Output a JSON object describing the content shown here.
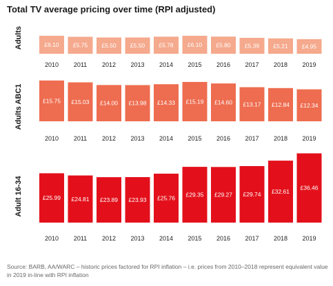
{
  "title": "Total TV average pricing over time (RPI adjusted)",
  "source": "Source: BARB, AA/WARC – historic prices factored for RPI inflation – i.e. prices from 2010–2018 represent equivalent value in 2019 in-line with RPI inflation",
  "chart_data": [
    {
      "type": "bar",
      "panel_label": "Adults",
      "color": "#f5a98d",
      "categories": [
        "2010",
        "2011",
        "2012",
        "2013",
        "2014",
        "2015",
        "2016",
        "2017",
        "2018",
        "2019"
      ],
      "values": [
        6.1,
        5.75,
        5.5,
        5.5,
        5.78,
        6.1,
        5.8,
        5.39,
        5.21,
        4.95
      ],
      "value_labels": [
        "£6.10",
        "£5.75",
        "£5.50",
        "£5.50",
        "£5.78",
        "£6.10",
        "£5.80",
        "£5.39",
        "£5.21",
        "£4.95"
      ],
      "ylim": [
        0,
        7
      ]
    },
    {
      "type": "bar",
      "panel_label": "Adults ABC1",
      "color": "#ee6c4f",
      "categories": [
        "2010",
        "2011",
        "2012",
        "2013",
        "2014",
        "2015",
        "2016",
        "2017",
        "2018",
        "2019"
      ],
      "values": [
        15.75,
        15.03,
        14.0,
        13.98,
        14.33,
        15.19,
        14.6,
        13.17,
        12.84,
        12.34
      ],
      "value_labels": [
        "£15.75",
        "£15.03",
        "£14.00",
        "£13.98",
        "£14.33",
        "£15.19",
        "£14.60",
        "£13.17",
        "£12.84",
        "£12.34"
      ],
      "ylim": [
        0,
        16.5
      ]
    },
    {
      "type": "bar",
      "panel_label": "Adult 16-34",
      "color": "#e3101b",
      "categories": [
        "2010",
        "2011",
        "2012",
        "2013",
        "2014",
        "2015",
        "2016",
        "2017",
        "2018",
        "2019"
      ],
      "values": [
        25.99,
        24.81,
        23.89,
        23.93,
        25.76,
        29.35,
        29.27,
        29.74,
        32.61,
        36.46
      ],
      "value_labels": [
        "£25.99",
        "£24.81",
        "£23.89",
        "£23.93",
        "£25.76",
        "£29.35",
        "£29.27",
        "£29.74",
        "£32.61",
        "£36.46"
      ],
      "ylim": [
        0,
        37
      ]
    }
  ]
}
